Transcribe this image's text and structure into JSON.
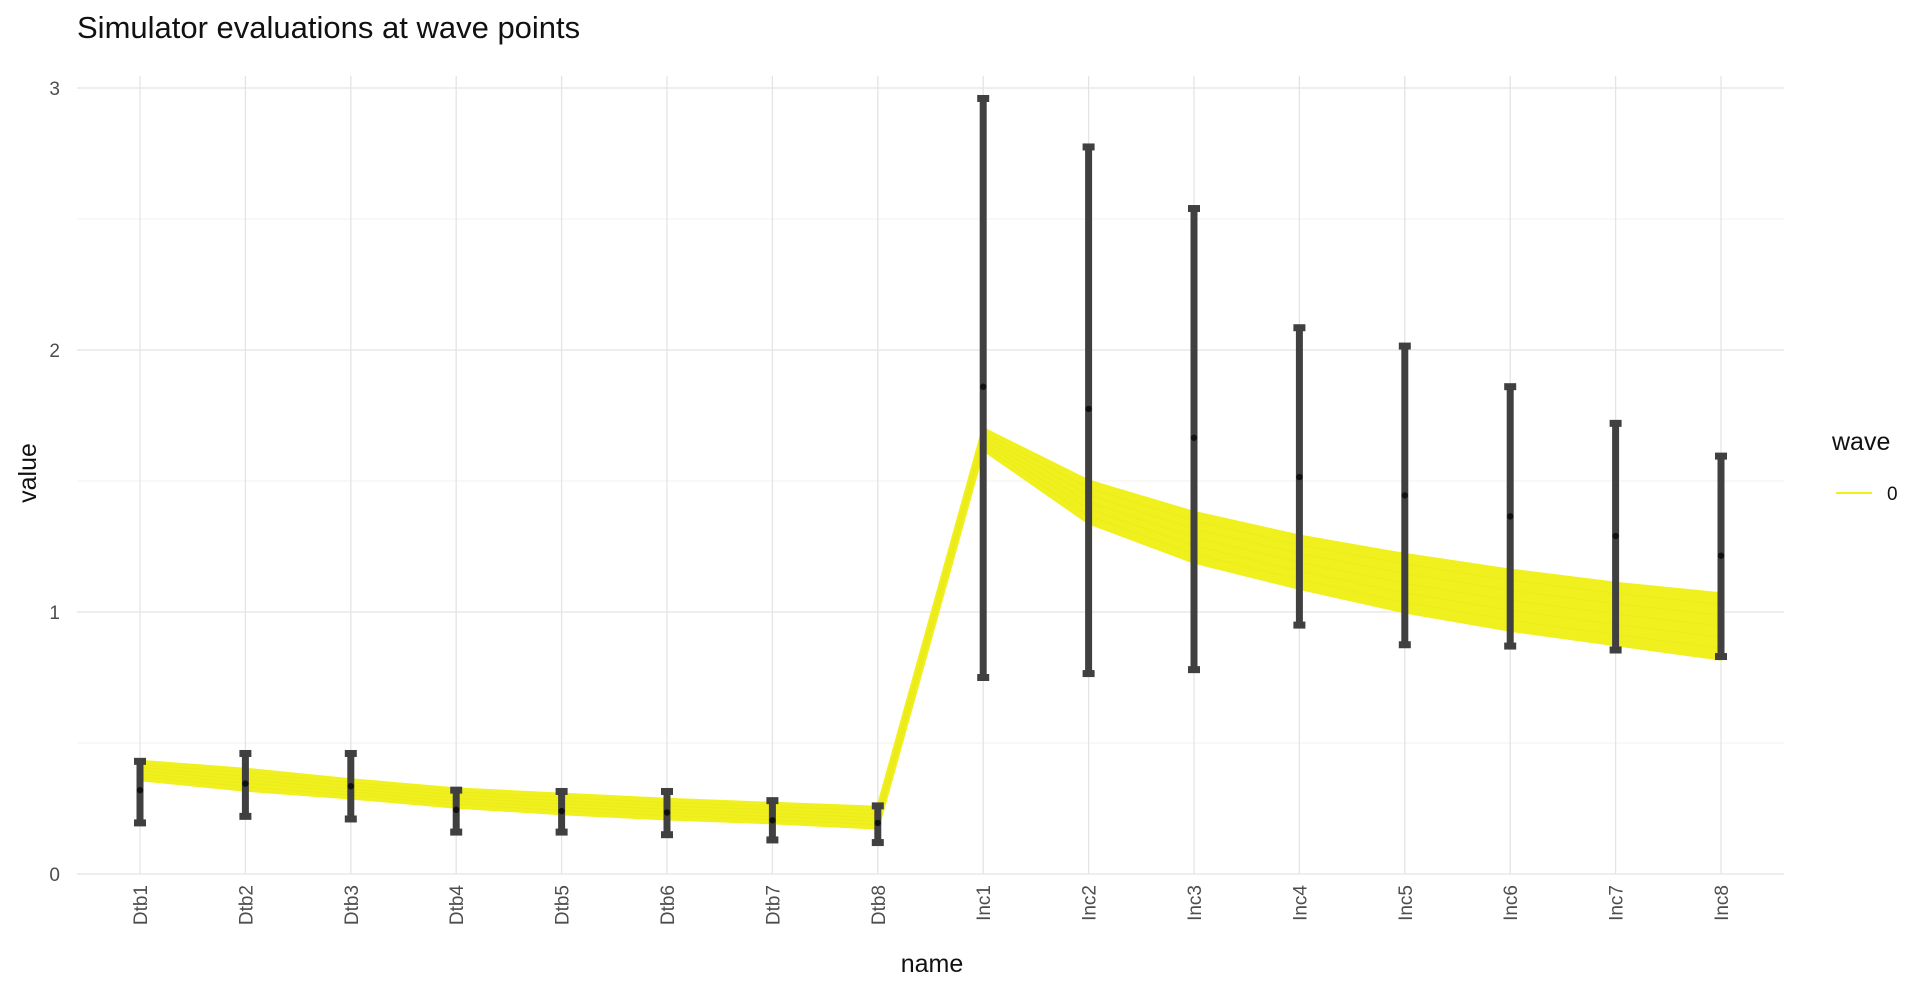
{
  "chart_data": {
    "type": "line",
    "title": "Simulator evaluations at wave points",
    "xlabel": "name",
    "ylabel": "value",
    "categories": [
      "Dtb1",
      "Dtb2",
      "Dtb3",
      "Dtb4",
      "Dtb5",
      "Dtb6",
      "Dtb7",
      "Dtb8",
      "Inc1",
      "Inc2",
      "Inc3",
      "Inc4",
      "Inc5",
      "Inc6",
      "Inc7",
      "Inc8"
    ],
    "ylim": [
      0,
      3
    ],
    "yticks": [
      0,
      1,
      2,
      3
    ],
    "grid": true,
    "legend": {
      "title": "wave",
      "position": "right",
      "entries": [
        {
          "label": "0",
          "color": "#f0f01e"
        }
      ]
    },
    "band": {
      "name": "0",
      "color": "#f0f01e",
      "lower": [
        0.36,
        0.32,
        0.29,
        0.255,
        0.23,
        0.21,
        0.195,
        0.175,
        1.62,
        1.34,
        1.19,
        1.09,
        1.0,
        0.93,
        0.875,
        0.82
      ],
      "upper": [
        0.43,
        0.4,
        0.36,
        0.325,
        0.305,
        0.285,
        0.27,
        0.255,
        1.7,
        1.5,
        1.38,
        1.29,
        1.22,
        1.16,
        1.11,
        1.07
      ]
    },
    "targets": {
      "color": "#404040",
      "values": [
        0.32,
        0.345,
        0.335,
        0.245,
        0.24,
        0.235,
        0.205,
        0.195,
        1.86,
        1.775,
        1.665,
        1.515,
        1.445,
        1.365,
        1.29,
        1.215
      ],
      "lower": [
        0.195,
        0.22,
        0.21,
        0.16,
        0.16,
        0.15,
        0.13,
        0.12,
        0.75,
        0.765,
        0.78,
        0.95,
        0.875,
        0.87,
        0.855,
        0.83
      ],
      "upper": [
        0.43,
        0.46,
        0.46,
        0.32,
        0.315,
        0.315,
        0.28,
        0.26,
        2.96,
        2.775,
        2.54,
        2.085,
        2.015,
        1.86,
        1.72,
        1.595
      ]
    }
  }
}
